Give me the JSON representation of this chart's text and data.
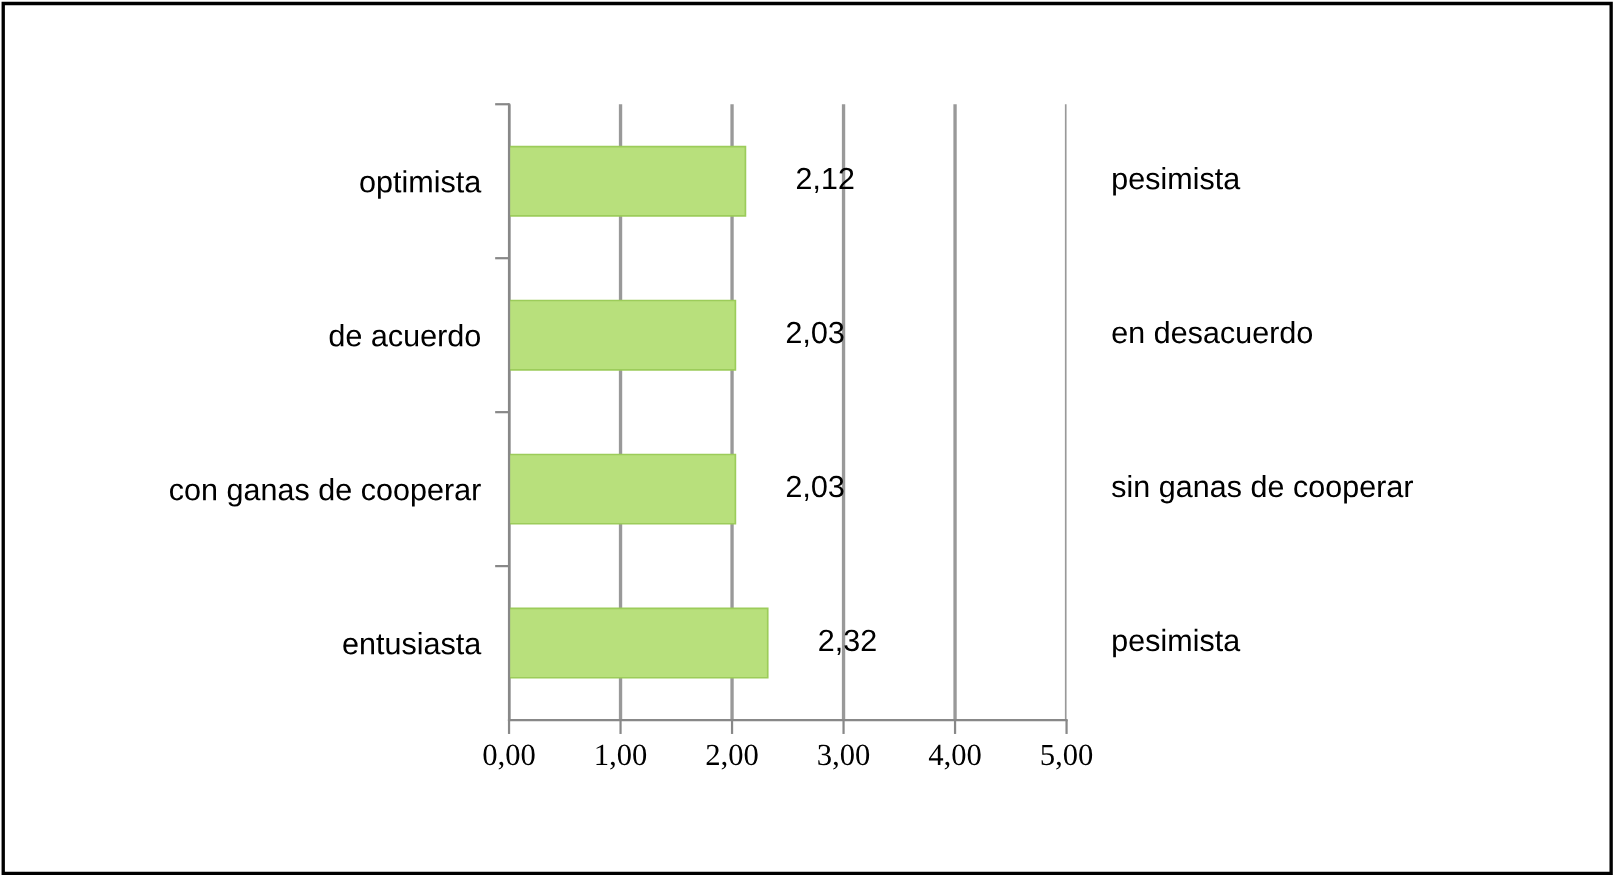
{
  "chart_data": {
    "type": "bar",
    "orientation": "horizontal",
    "categories": [
      "optimista",
      "de acuerdo",
      "con ganas de cooperar",
      "entusiasta"
    ],
    "values": [
      2.12,
      2.03,
      2.03,
      2.32
    ],
    "value_labels": [
      "2,12",
      "2,03",
      "2,03",
      "2,32"
    ],
    "color": "#b8e07c",
    "xlim": [
      0,
      5
    ],
    "xticks": [
      {
        "value": 0,
        "label": "0,00"
      },
      {
        "value": 1,
        "label": "1,00"
      },
      {
        "value": 2,
        "label": "2,00"
      },
      {
        "value": 3,
        "label": "3,00"
      },
      {
        "value": 4,
        "label": "4,00"
      },
      {
        "value": 5,
        "label": "5,00"
      }
    ],
    "grid": "x",
    "annotations": [
      "pesimista",
      "en desacuerdo",
      "sin ganas de cooperar",
      "pesimista"
    ]
  }
}
